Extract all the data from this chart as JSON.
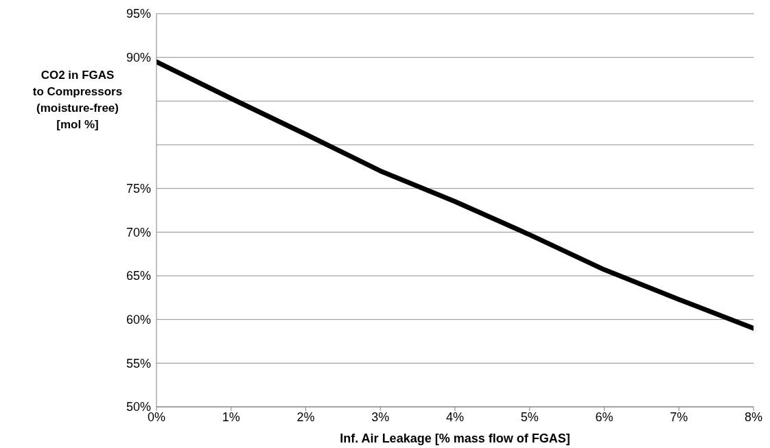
{
  "chart_data": {
    "type": "line",
    "xlabel": "Inf. Air Leakage [% mass flow of FGAS]",
    "ylabel": "CO2 in FGAS\nto Compressors\n(moisture-free)\n[mol %]",
    "x": [
      0,
      1,
      2,
      3,
      4,
      5,
      6,
      7,
      8
    ],
    "series": [
      {
        "color": "#000000",
        "values": [
          89.5,
          85.3,
          81.2,
          77.0,
          73.5,
          69.7,
          65.7,
          62.3,
          59.0
        ]
      }
    ],
    "xlim": [
      0,
      8
    ],
    "xticks": [
      {
        "value": 0,
        "label": "0%"
      },
      {
        "value": 1,
        "label": "1%"
      },
      {
        "value": 2,
        "label": "2%"
      },
      {
        "value": 3,
        "label": "3%"
      },
      {
        "value": 4,
        "label": "4%"
      },
      {
        "value": 5,
        "label": "5%"
      },
      {
        "value": 6,
        "label": "6%"
      },
      {
        "value": 7,
        "label": "7%"
      },
      {
        "value": 8,
        "label": "8%"
      }
    ],
    "ylim": [
      50,
      95
    ],
    "yticks": [
      {
        "value": 50,
        "label": "50%"
      },
      {
        "value": 55,
        "label": "55%"
      },
      {
        "value": 60,
        "label": "60%"
      },
      {
        "value": 65,
        "label": "65%"
      },
      {
        "value": 70,
        "label": "70%"
      },
      {
        "value": 75,
        "label": "75%"
      },
      {
        "value": 80,
        "label": null
      },
      {
        "value": 85,
        "label": null
      },
      {
        "value": 90,
        "label": "90%"
      },
      {
        "value": 95,
        "label": "95%"
      }
    ],
    "grid": "y",
    "marker": "none",
    "line_style": "solid"
  }
}
